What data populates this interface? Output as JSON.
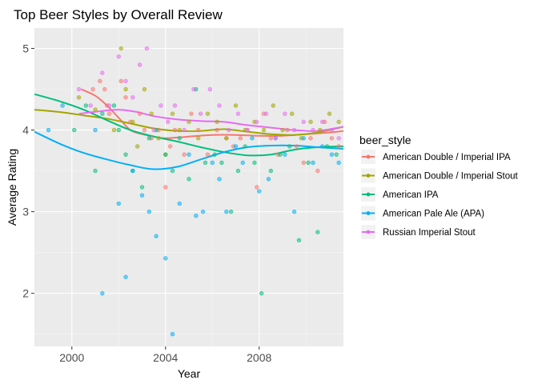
{
  "chart_data": {
    "type": "scatter",
    "title": "Top Beer Styles by Overall Review",
    "xlabel": "Year",
    "ylabel": "Average Rating",
    "xlim": [
      1998.4,
      2011.6
    ],
    "ylim": [
      1.35,
      5.25
    ],
    "xticks": [
      2000,
      2004,
      2008
    ],
    "yticks": [
      2,
      3,
      4,
      5
    ],
    "grid": true,
    "legend": {
      "title": "beer_style",
      "position": "right"
    },
    "series": [
      {
        "name": "American Double / Imperial IPA",
        "color": "#F8766D",
        "points": [
          [
            2000.9,
            4.5
          ],
          [
            2001.2,
            4.6
          ],
          [
            2001.4,
            4.5
          ],
          [
            2001.5,
            4.3
          ],
          [
            2001.6,
            4.2
          ],
          [
            2002.1,
            4.6
          ],
          [
            2002.3,
            4.4
          ],
          [
            2002.5,
            4.1
          ],
          [
            2002.9,
            4.2
          ],
          [
            2003.1,
            4.0
          ],
          [
            2003.4,
            3.9
          ],
          [
            2003.7,
            4.0
          ],
          [
            2004.0,
            3.3
          ],
          [
            2004.2,
            3.8
          ],
          [
            2004.4,
            4.0
          ],
          [
            2004.8,
            3.7
          ],
          [
            2005.1,
            4.2
          ],
          [
            2005.4,
            4.0
          ],
          [
            2005.8,
            3.7
          ],
          [
            2006.2,
            4.0
          ],
          [
            2006.6,
            3.9
          ],
          [
            2006.9,
            3.8
          ],
          [
            2007.2,
            3.9
          ],
          [
            2007.5,
            4.0
          ],
          [
            2007.9,
            3.3
          ],
          [
            2008.2,
            4.2
          ],
          [
            2008.5,
            3.9
          ],
          [
            2008.8,
            3.7
          ],
          [
            2009.2,
            4.0
          ],
          [
            2009.6,
            3.8
          ],
          [
            2009.9,
            3.6
          ],
          [
            2010.2,
            3.9
          ],
          [
            2010.5,
            3.5
          ],
          [
            2010.8,
            4.1
          ],
          [
            2011.1,
            3.9
          ],
          [
            2011.4,
            3.8
          ]
        ],
        "smooth": [
          [
            1998.4,
            null
          ],
          [
            2000.4,
            4.5
          ],
          [
            2001.0,
            4.42
          ],
          [
            2001.5,
            4.3
          ],
          [
            2002.0,
            4.15
          ],
          [
            2002.5,
            4.0
          ],
          [
            2003.0,
            3.95
          ],
          [
            2003.5,
            3.92
          ],
          [
            2004.0,
            3.9
          ],
          [
            2005.0,
            3.92
          ],
          [
            2006.0,
            3.94
          ],
          [
            2007.0,
            3.94
          ],
          [
            2008.0,
            3.93
          ],
          [
            2009.0,
            3.93
          ],
          [
            2010.0,
            3.95
          ],
          [
            2011.0,
            3.97
          ],
          [
            2011.6,
            3.99
          ]
        ]
      },
      {
        "name": "American Double / Imperial Stout",
        "color": "#A3A500",
        "points": [
          [
            2000.3,
            4.4
          ],
          [
            2001.0,
            4.25
          ],
          [
            2001.8,
            4.0
          ],
          [
            2002.1,
            5.0
          ],
          [
            2002.3,
            4.5
          ],
          [
            2002.6,
            4.1
          ],
          [
            2002.8,
            3.8
          ],
          [
            2003.1,
            4.5
          ],
          [
            2003.4,
            4.2
          ],
          [
            2003.7,
            3.9
          ],
          [
            2004.0,
            3.7
          ],
          [
            2004.3,
            4.2
          ],
          [
            2004.6,
            4.0
          ],
          [
            2005.0,
            4.1
          ],
          [
            2005.4,
            3.9
          ],
          [
            2005.8,
            4.2
          ],
          [
            2006.2,
            4.1
          ],
          [
            2006.6,
            3.9
          ],
          [
            2007.0,
            4.3
          ],
          [
            2007.4,
            4.0
          ],
          [
            2007.8,
            4.1
          ],
          [
            2008.2,
            4.0
          ],
          [
            2008.6,
            4.3
          ],
          [
            2009.0,
            4.0
          ],
          [
            2009.4,
            4.2
          ],
          [
            2009.8,
            3.9
          ],
          [
            2010.2,
            4.1
          ],
          [
            2010.6,
            4.0
          ],
          [
            2011.0,
            4.2
          ],
          [
            2011.4,
            4.1
          ]
        ],
        "smooth": [
          [
            1998.4,
            4.25
          ],
          [
            1999.5,
            4.22
          ],
          [
            2000.5,
            4.18
          ],
          [
            2001.5,
            4.14
          ],
          [
            2002.5,
            4.08
          ],
          [
            2003.5,
            4.02
          ],
          [
            2004.5,
            3.99
          ],
          [
            2005.5,
            3.99
          ],
          [
            2006.5,
            4.01
          ],
          [
            2007.5,
            3.98
          ],
          [
            2008.5,
            3.95
          ],
          [
            2009.5,
            3.94
          ],
          [
            2010.5,
            3.97
          ],
          [
            2011.6,
            4.04
          ]
        ]
      },
      {
        "name": "American IPA",
        "color": "#00BF7D",
        "points": [
          [
            2000.1,
            4.0
          ],
          [
            2000.6,
            4.3
          ],
          [
            2001.0,
            3.5
          ],
          [
            2001.3,
            4.2
          ],
          [
            2001.8,
            4.3
          ],
          [
            2002.0,
            4.0
          ],
          [
            2002.3,
            3.7
          ],
          [
            2002.6,
            3.5
          ],
          [
            2003.0,
            3.3
          ],
          [
            2003.3,
            3.9
          ],
          [
            2003.6,
            4.0
          ],
          [
            2004.0,
            3.7
          ],
          [
            2004.3,
            3.5
          ],
          [
            2004.6,
            3.9
          ],
          [
            2005.0,
            3.4
          ],
          [
            2005.3,
            4.5
          ],
          [
            2005.7,
            3.6
          ],
          [
            2006.1,
            3.7
          ],
          [
            2006.4,
            3.6
          ],
          [
            2006.8,
            3.0
          ],
          [
            2007.1,
            3.5
          ],
          [
            2007.4,
            3.8
          ],
          [
            2007.8,
            3.6
          ],
          [
            2008.1,
            2.0
          ],
          [
            2008.5,
            3.5
          ],
          [
            2008.9,
            3.7
          ],
          [
            2009.3,
            3.8
          ],
          [
            2009.7,
            2.65
          ],
          [
            2010.1,
            3.6
          ],
          [
            2010.5,
            2.75
          ],
          [
            2010.9,
            3.8
          ],
          [
            2011.3,
            3.7
          ]
        ],
        "smooth": [
          [
            1998.4,
            4.44
          ],
          [
            1999.5,
            4.35
          ],
          [
            2000.5,
            4.25
          ],
          [
            2001.5,
            4.12
          ],
          [
            2002.5,
            4.0
          ],
          [
            2003.5,
            3.92
          ],
          [
            2004.5,
            3.86
          ],
          [
            2005.5,
            3.79
          ],
          [
            2006.5,
            3.73
          ],
          [
            2007.5,
            3.69
          ],
          [
            2008.5,
            3.7
          ],
          [
            2009.5,
            3.76
          ],
          [
            2010.5,
            3.79
          ],
          [
            2011.6,
            3.8
          ]
        ]
      },
      {
        "name": "American Pale Ale (APA)",
        "color": "#00B0F6",
        "points": [
          [
            1999.0,
            4.0
          ],
          [
            1999.6,
            4.3
          ],
          [
            2001.0,
            4.0
          ],
          [
            2001.3,
            2.0
          ],
          [
            2002.0,
            3.1
          ],
          [
            2002.3,
            2.2
          ],
          [
            2002.6,
            3.5
          ],
          [
            2003.0,
            3.2
          ],
          [
            2003.3,
            3.0
          ],
          [
            2003.6,
            2.7
          ],
          [
            2004.0,
            2.43
          ],
          [
            2004.3,
            1.5
          ],
          [
            2004.6,
            3.1
          ],
          [
            2005.0,
            3.7
          ],
          [
            2005.3,
            2.95
          ],
          [
            2005.6,
            3.0
          ],
          [
            2006.0,
            3.6
          ],
          [
            2006.3,
            3.4
          ],
          [
            2006.6,
            3.0
          ],
          [
            2007.0,
            3.8
          ],
          [
            2007.3,
            3.6
          ],
          [
            2007.7,
            3.9
          ],
          [
            2008.0,
            3.25
          ],
          [
            2008.4,
            3.4
          ],
          [
            2008.7,
            3.9
          ],
          [
            2009.1,
            3.7
          ],
          [
            2009.5,
            3.0
          ],
          [
            2009.9,
            3.9
          ],
          [
            2010.3,
            3.6
          ],
          [
            2010.7,
            3.8
          ],
          [
            2011.1,
            3.7
          ],
          [
            2011.4,
            3.6
          ]
        ],
        "smooth": [
          [
            1998.4,
            3.98
          ],
          [
            1999.5,
            3.83
          ],
          [
            2000.5,
            3.72
          ],
          [
            2001.5,
            3.64
          ],
          [
            2002.5,
            3.57
          ],
          [
            2003.5,
            3.52
          ],
          [
            2004.5,
            3.55
          ],
          [
            2005.5,
            3.64
          ],
          [
            2006.5,
            3.73
          ],
          [
            2007.5,
            3.79
          ],
          [
            2008.5,
            3.81
          ],
          [
            2009.5,
            3.81
          ],
          [
            2010.5,
            3.79
          ],
          [
            2011.6,
            3.77
          ]
        ]
      },
      {
        "name": "Russian Imperial Stout",
        "color": "#E76BF3",
        "points": [
          [
            2000.3,
            4.5
          ],
          [
            2000.8,
            4.3
          ],
          [
            2001.3,
            4.7
          ],
          [
            2001.6,
            4.3
          ],
          [
            2002.0,
            4.9
          ],
          [
            2002.3,
            4.6
          ],
          [
            2002.6,
            4.4
          ],
          [
            2002.9,
            4.8
          ],
          [
            2003.2,
            5.0
          ],
          [
            2003.5,
            4.0
          ],
          [
            2003.8,
            4.3
          ],
          [
            2004.1,
            4.1
          ],
          [
            2004.4,
            4.3
          ],
          [
            2004.8,
            4.0
          ],
          [
            2005.2,
            4.5
          ],
          [
            2005.5,
            4.2
          ],
          [
            2005.9,
            4.5
          ],
          [
            2006.3,
            4.3
          ],
          [
            2006.7,
            4.0
          ],
          [
            2007.1,
            4.2
          ],
          [
            2007.5,
            4.0
          ],
          [
            2007.9,
            4.1
          ],
          [
            2008.3,
            4.2
          ],
          [
            2008.7,
            3.9
          ],
          [
            2009.1,
            4.2
          ],
          [
            2009.5,
            4.0
          ],
          [
            2009.9,
            4.1
          ],
          [
            2010.3,
            4.0
          ],
          [
            2010.7,
            4.1
          ],
          [
            2011.1,
            4.0
          ],
          [
            2011.4,
            3.9
          ]
        ],
        "smooth": [
          [
            1998.4,
            null
          ],
          [
            2000.3,
            4.2
          ],
          [
            2001.2,
            4.23
          ],
          [
            2002.0,
            4.25
          ],
          [
            2002.8,
            4.22
          ],
          [
            2003.5,
            4.17
          ],
          [
            2004.5,
            4.13
          ],
          [
            2005.5,
            4.11
          ],
          [
            2006.5,
            4.1
          ],
          [
            2007.5,
            4.06
          ],
          [
            2008.5,
            4.03
          ],
          [
            2009.5,
            4.0
          ],
          [
            2010.5,
            3.99
          ],
          [
            2011.6,
            4.04
          ]
        ]
      }
    ]
  }
}
